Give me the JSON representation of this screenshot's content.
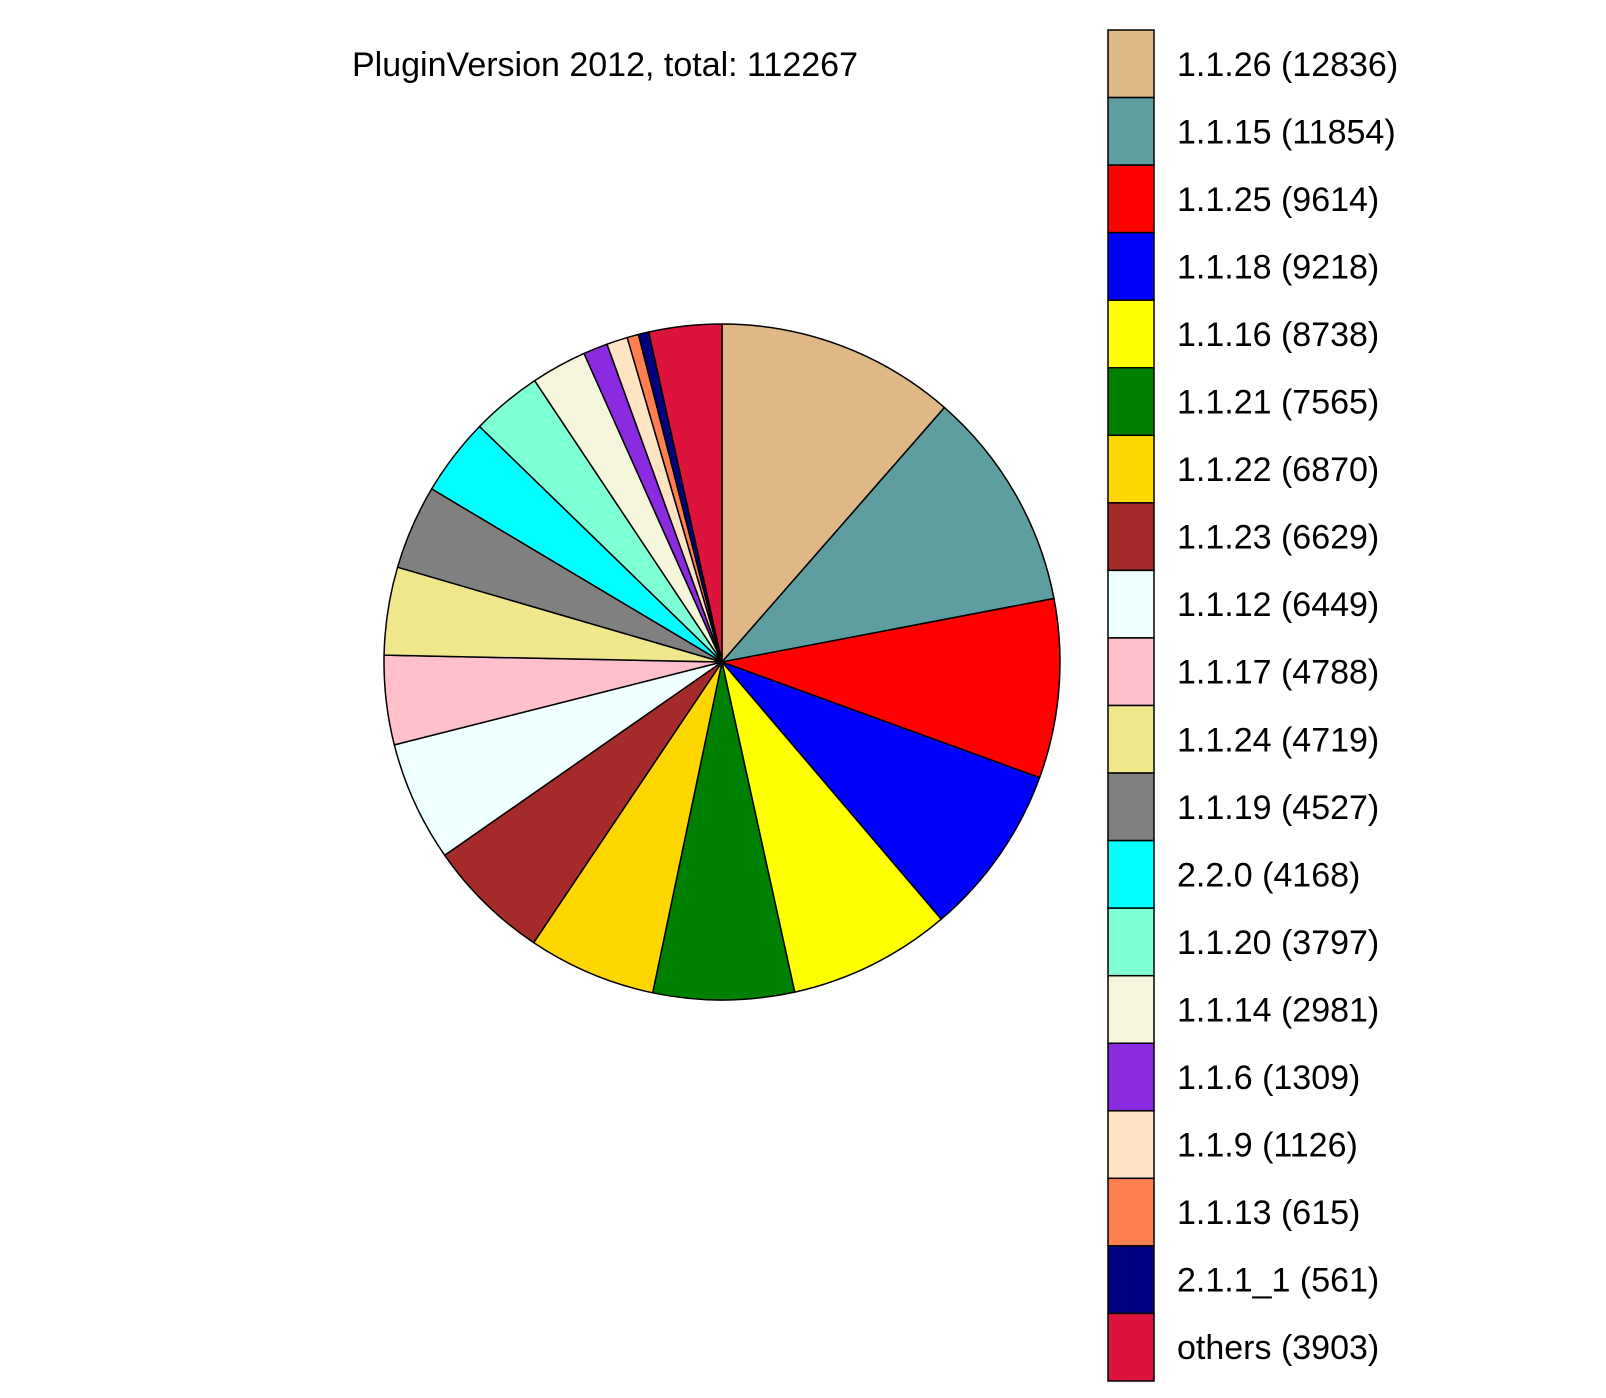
{
  "chart_data": {
    "type": "pie",
    "title": "PluginVersion 2012, total: 112267",
    "total": 112267,
    "start": "12 o'clock",
    "direction": "clockwise",
    "legend_position": "right",
    "slices": [
      {
        "label": "1.1.26 (12836)",
        "name": "1.1.26",
        "value": 12836,
        "color": "#DEB887"
      },
      {
        "label": "1.1.15 (11854)",
        "name": "1.1.15",
        "value": 11854,
        "color": "#5F9EA0"
      },
      {
        "label": "1.1.25 (9614)",
        "name": "1.1.25",
        "value": 9614,
        "color": "#FF0000"
      },
      {
        "label": "1.1.18 (9218)",
        "name": "1.1.18",
        "value": 9218,
        "color": "#0000FF"
      },
      {
        "label": "1.1.16 (8738)",
        "name": "1.1.16",
        "value": 8738,
        "color": "#FFFF00"
      },
      {
        "label": "1.1.21 (7565)",
        "name": "1.1.21",
        "value": 7565,
        "color": "#008000"
      },
      {
        "label": "1.1.22 (6870)",
        "name": "1.1.22",
        "value": 6870,
        "color": "#FFD700"
      },
      {
        "label": "1.1.23 (6629)",
        "name": "1.1.23",
        "value": 6629,
        "color": "#A52A2A"
      },
      {
        "label": "1.1.12 (6449)",
        "name": "1.1.12",
        "value": 6449,
        "color": "#F0FFFF"
      },
      {
        "label": "1.1.17 (4788)",
        "name": "1.1.17",
        "value": 4788,
        "color": "#FFC0CB"
      },
      {
        "label": "1.1.24 (4719)",
        "name": "1.1.24",
        "value": 4719,
        "color": "#F0E68C"
      },
      {
        "label": "1.1.19 (4527)",
        "name": "1.1.19",
        "value": 4527,
        "color": "#808080"
      },
      {
        "label": "2.2.0 (4168)",
        "name": "2.2.0",
        "value": 4168,
        "color": "#00FFFF"
      },
      {
        "label": "1.1.20 (3797)",
        "name": "1.1.20",
        "value": 3797,
        "color": "#7FFFD4"
      },
      {
        "label": "1.1.14 (2981)",
        "name": "1.1.14",
        "value": 2981,
        "color": "#F5F5DC"
      },
      {
        "label": "1.1.6 (1309)",
        "name": "1.1.6",
        "value": 1309,
        "color": "#8A2BE2"
      },
      {
        "label": "1.1.9 (1126)",
        "name": "1.1.9",
        "value": 1126,
        "color": "#FFE4C4"
      },
      {
        "label": "1.1.13 (615)",
        "name": "1.1.13",
        "value": 615,
        "color": "#FF7F50"
      },
      {
        "label": "2.1.1_1 (561)",
        "name": "2.1.1_1",
        "value": 561,
        "color": "#000080"
      },
      {
        "label": "others (3903)",
        "name": "others",
        "value": 3903,
        "color": "#DC143C"
      }
    ]
  }
}
